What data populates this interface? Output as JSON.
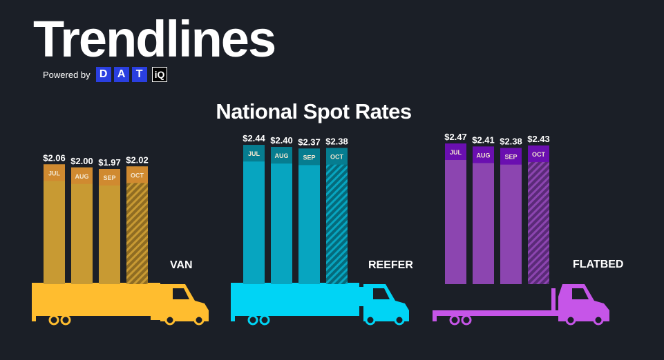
{
  "header": {
    "title": "Trendlines",
    "powered_by": "Powered by",
    "logo_letters": [
      "D",
      "A",
      "T"
    ],
    "logo_suffix": "iQ"
  },
  "subtitle": "National Spot Rates",
  "colors": {
    "background": "#1b1f27",
    "van": "#ffbd2f",
    "van_bar": "#c89a33",
    "van_tab": "#d08a30",
    "reefer": "#00d4f5",
    "reefer_bar": "#07a5c0",
    "reefer_tab": "#067d90",
    "flatbed": "#c655e8",
    "flatbed_bar": "#8c45b0",
    "flatbed_tab": "#6a0fb0",
    "logo_blue": "#2a3fe0"
  },
  "chart_data": [
    {
      "type": "bar",
      "name": "VAN",
      "categories": [
        "JUL",
        "AUG",
        "SEP",
        "OCT"
      ],
      "values": [
        2.06,
        2.0,
        1.97,
        2.02
      ],
      "value_labels": [
        "$2.06",
        "$2.00",
        "$1.97",
        "$2.02"
      ],
      "hatched_category": "OCT"
    },
    {
      "type": "bar",
      "name": "REEFER",
      "categories": [
        "JUL",
        "AUG",
        "SEP",
        "OCT"
      ],
      "values": [
        2.44,
        2.4,
        2.37,
        2.38
      ],
      "value_labels": [
        "$2.44",
        "$2.40",
        "$2.37",
        "$2.38"
      ],
      "hatched_category": "OCT"
    },
    {
      "type": "bar",
      "name": "FLATBED",
      "categories": [
        "JUL",
        "AUG",
        "SEP",
        "OCT"
      ],
      "values": [
        2.47,
        2.41,
        2.38,
        2.43
      ],
      "value_labels": [
        "$2.47",
        "$2.41",
        "$2.38",
        "$2.43"
      ],
      "hatched_category": "OCT"
    }
  ]
}
